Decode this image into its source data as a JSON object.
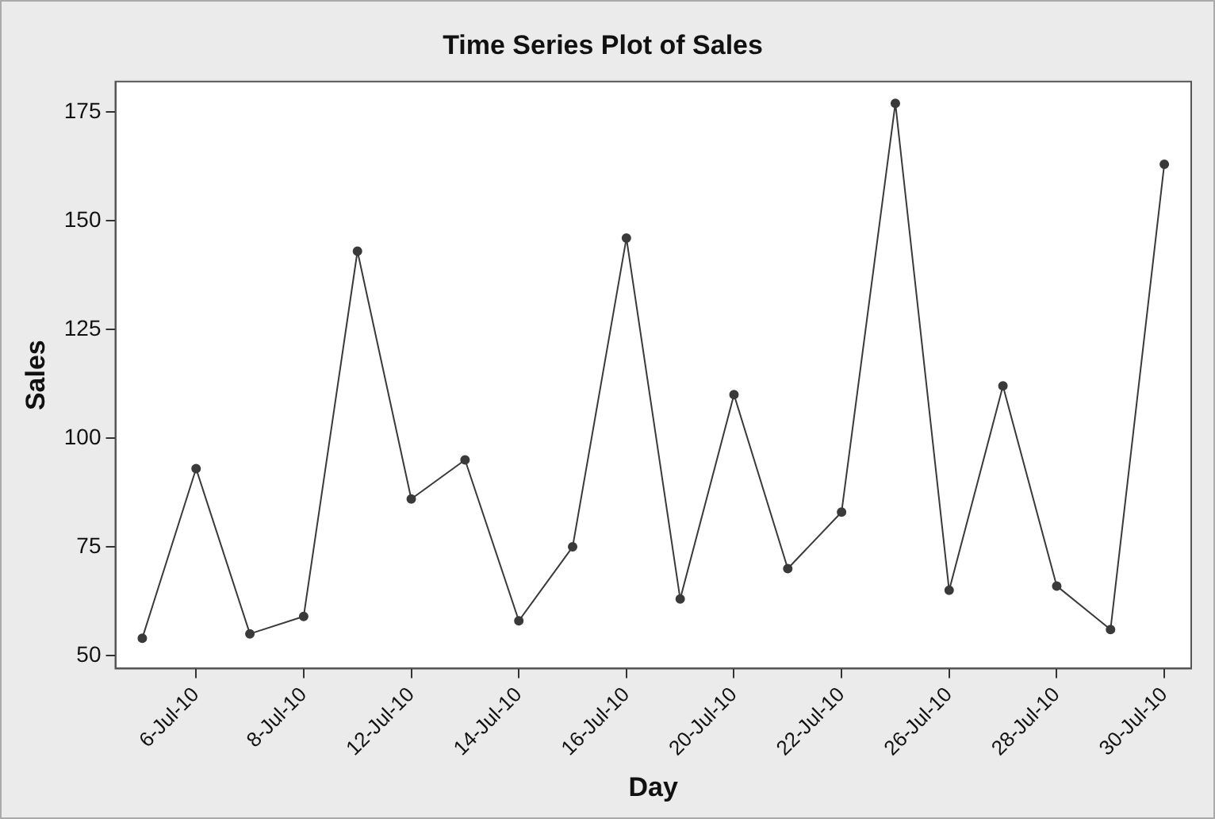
{
  "chart_data": {
    "type": "line",
    "title": "Time Series Plot of Sales",
    "xlabel": "Day",
    "ylabel": "Sales",
    "categories": [
      null,
      "6-Jul-10",
      null,
      "8-Jul-10",
      null,
      "12-Jul-10",
      null,
      "14-Jul-10",
      null,
      "16-Jul-10",
      null,
      "20-Jul-10",
      null,
      "22-Jul-10",
      null,
      "26-Jul-10",
      null,
      "28-Jul-10",
      null,
      "30-Jul-10"
    ],
    "series": [
      {
        "color": "#3a3a3a",
        "values": [
          54,
          93,
          55,
          59,
          143,
          86,
          95,
          58,
          75,
          146,
          63,
          110,
          70,
          83,
          177,
          65,
          112,
          66,
          56,
          163
        ]
      }
    ],
    "ylim": [
      47,
      182
    ],
    "yticks": [
      50,
      75,
      100,
      125,
      150,
      175
    ],
    "grid": false,
    "legend": false,
    "marker": "circle",
    "line_style": "solid"
  }
}
